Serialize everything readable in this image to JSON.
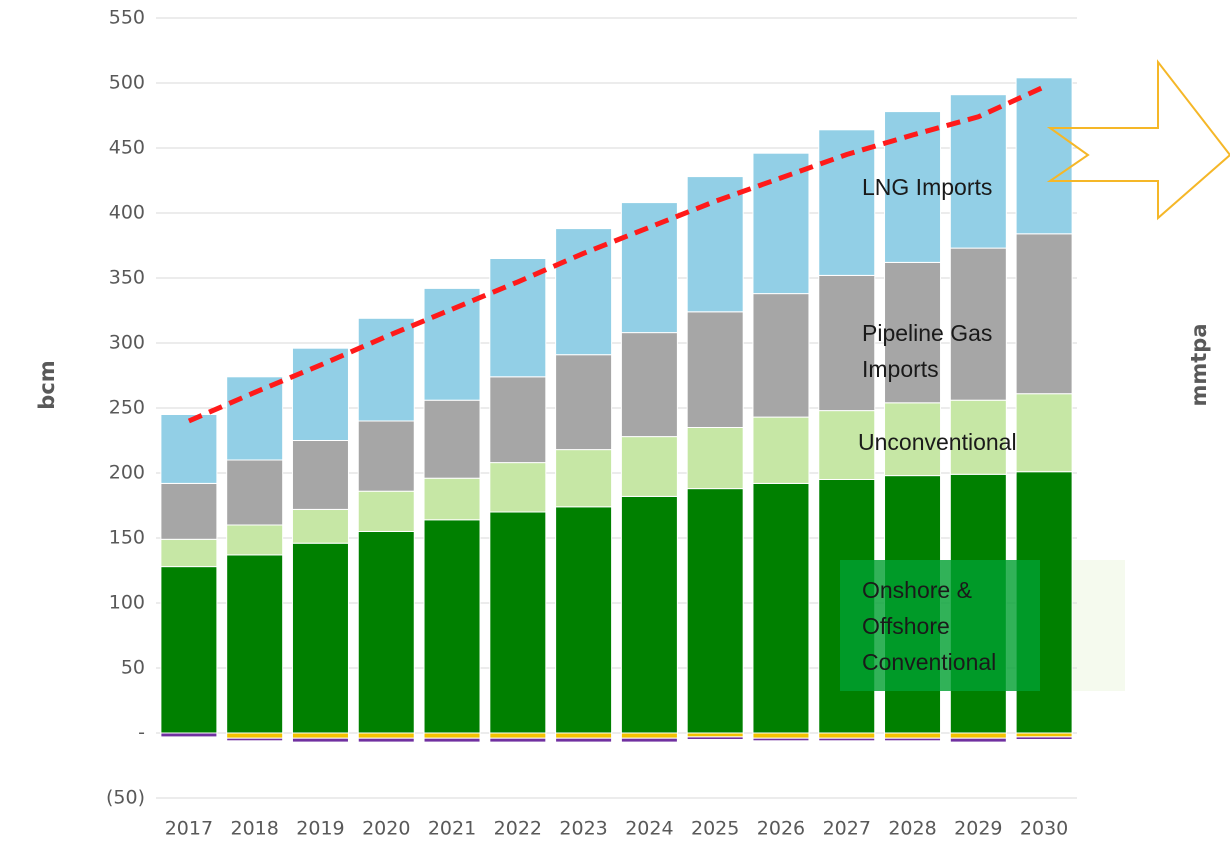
{
  "chart_data": {
    "type": "stacked-bar",
    "y_label": "bcm",
    "y2_label": "mmtpa",
    "categories": [
      "2017",
      "2018",
      "2019",
      "2020",
      "2021",
      "2022",
      "2023",
      "2024",
      "2025",
      "2026",
      "2027",
      "2028",
      "2029",
      "2030"
    ],
    "series": [
      {
        "name": "Onshore & Offshore Conventional",
        "color": "#008000",
        "values": [
          128,
          137,
          146,
          155,
          164,
          170,
          174,
          182,
          188,
          192,
          195,
          198,
          199,
          201
        ]
      },
      {
        "name": "Unconventional",
        "color": "#c6e7a5",
        "values": [
          21,
          23,
          26,
          31,
          32,
          38,
          44,
          46,
          47,
          51,
          53,
          56,
          57,
          60
        ]
      },
      {
        "name": "Pipeline Gas Imports",
        "color": "#a6a6a6",
        "values": [
          43,
          50,
          53,
          54,
          60,
          66,
          73,
          80,
          89,
          95,
          104,
          108,
          117,
          123
        ]
      },
      {
        "name": "LNG Imports",
        "color": "#92cfe6",
        "values": [
          53,
          64,
          71,
          79,
          86,
          91,
          97,
          100,
          104,
          108,
          112,
          116,
          118,
          120
        ]
      },
      {
        "color": "#f2c200",
        "values": [
          0,
          -4,
          -4,
          -4,
          -4,
          -4,
          -4,
          -4,
          -3,
          -4,
          -4,
          -4,
          -4,
          -3
        ]
      },
      {
        "color": "#7030a0",
        "values": [
          -3,
          -2,
          -3,
          -3,
          -3,
          -3,
          -3,
          -3,
          -2,
          -2,
          -2,
          -2,
          -3,
          -2
        ]
      }
    ],
    "trend_line": {
      "color": "#ff1a1a",
      "values": [
        240,
        262,
        283,
        305,
        326,
        347,
        369,
        389,
        409,
        427,
        445,
        460,
        474,
        497
      ]
    },
    "ylim": [
      -50,
      550
    ],
    "yticks": [
      {
        "value": -50,
        "label": "(50)"
      },
      {
        "value": 0,
        "label": "-"
      },
      50,
      100,
      150,
      200,
      250,
      300,
      350,
      400,
      450,
      500,
      550
    ],
    "grid": true
  }
}
